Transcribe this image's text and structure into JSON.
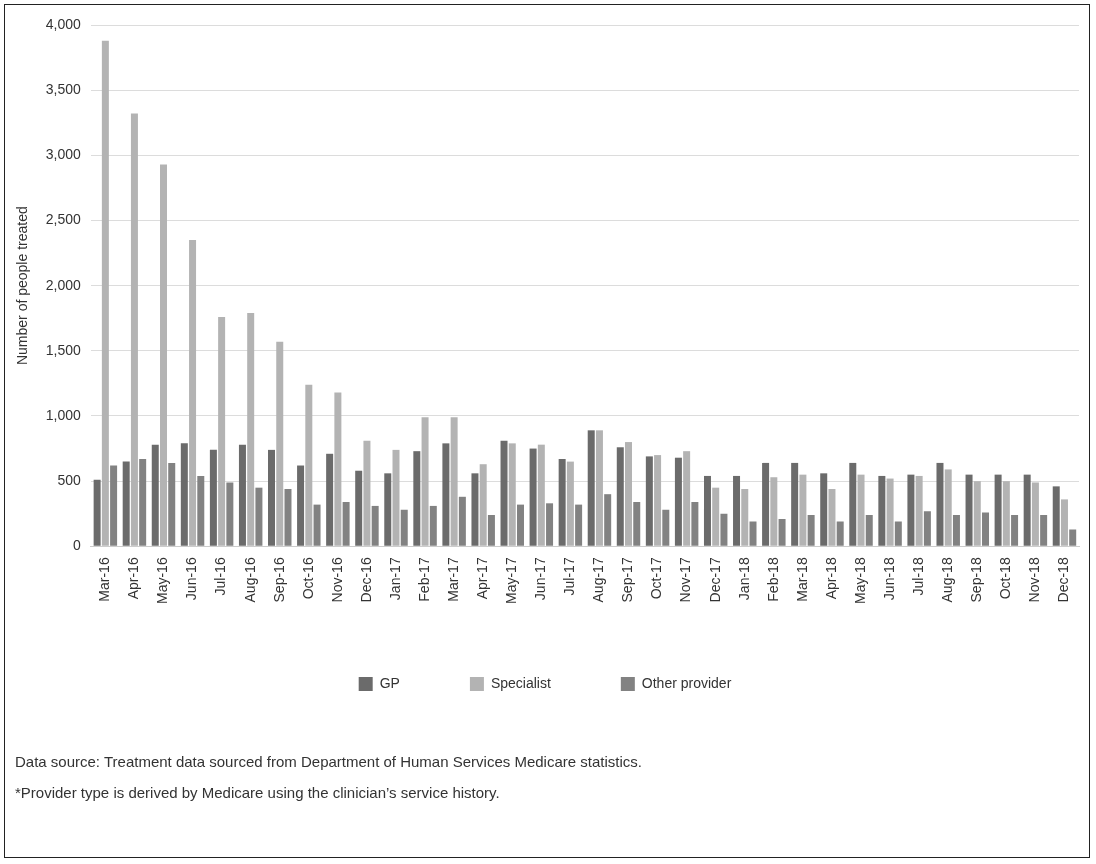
{
  "chart_data": {
    "type": "bar",
    "ylabel": "Number of people treated",
    "categories": [
      "Mar-16",
      "Apr-16",
      "May-16",
      "Jun-16",
      "Jul-16",
      "Aug-16",
      "Sep-16",
      "Oct-16",
      "Nov-16",
      "Dec-16",
      "Jan-17",
      "Feb-17",
      "Mar-17",
      "Apr-17",
      "May-17",
      "Jun-17",
      "Jul-17",
      "Aug-17",
      "Sep-17",
      "Oct-17",
      "Nov-17",
      "Dec-17",
      "Jan-18",
      "Feb-18",
      "Mar-18",
      "Apr-18",
      "May-18",
      "Jun-18",
      "Jul-18",
      "Aug-18",
      "Sep-18",
      "Oct-18",
      "Nov-18",
      "Dec-18"
    ],
    "series": [
      {
        "name": "GP",
        "color": "#6b6b6b",
        "values": [
          510,
          650,
          780,
          790,
          740,
          780,
          740,
          620,
          710,
          580,
          560,
          730,
          790,
          560,
          810,
          750,
          670,
          890,
          760,
          690,
          680,
          540,
          540,
          640,
          640,
          560,
          640,
          540,
          550,
          640,
          550,
          550,
          550,
          460
        ]
      },
      {
        "name": "Specialist",
        "color": "#b3b3b3",
        "values": [
          3880,
          3320,
          2930,
          2350,
          1760,
          1790,
          1570,
          1240,
          1180,
          810,
          740,
          990,
          990,
          630,
          790,
          780,
          650,
          890,
          800,
          700,
          730,
          450,
          440,
          530,
          550,
          440,
          550,
          520,
          540,
          590,
          500,
          500,
          490,
          360
        ]
      },
      {
        "name": "Other provider",
        "color": "#828282",
        "values": [
          620,
          670,
          640,
          540,
          490,
          450,
          440,
          320,
          340,
          310,
          280,
          310,
          380,
          240,
          320,
          330,
          320,
          400,
          340,
          280,
          340,
          250,
          190,
          210,
          240,
          190,
          240,
          190,
          270,
          240,
          260,
          240,
          240,
          130
        ]
      }
    ],
    "ylim": [
      0,
      4000
    ],
    "yticks": [
      0,
      500,
      {
        "value": 1000,
        "label": "1,000"
      },
      {
        "value": 1500,
        "label": "1,500"
      },
      {
        "value": 2000,
        "label": "2,000"
      },
      {
        "value": 2500,
        "label": "2,500"
      },
      {
        "value": 3000,
        "label": "3,000"
      },
      {
        "value": 3500,
        "label": "3,500"
      },
      {
        "value": 4000,
        "label": "4,000"
      }
    ],
    "grid": "y",
    "legend": "bottom",
    "annotations": [
      "Data source: Treatment data sourced from Department of Human Services Medicare statistics.",
      "*Provider type is derived by Medicare using the clinician’s service history."
    ]
  }
}
